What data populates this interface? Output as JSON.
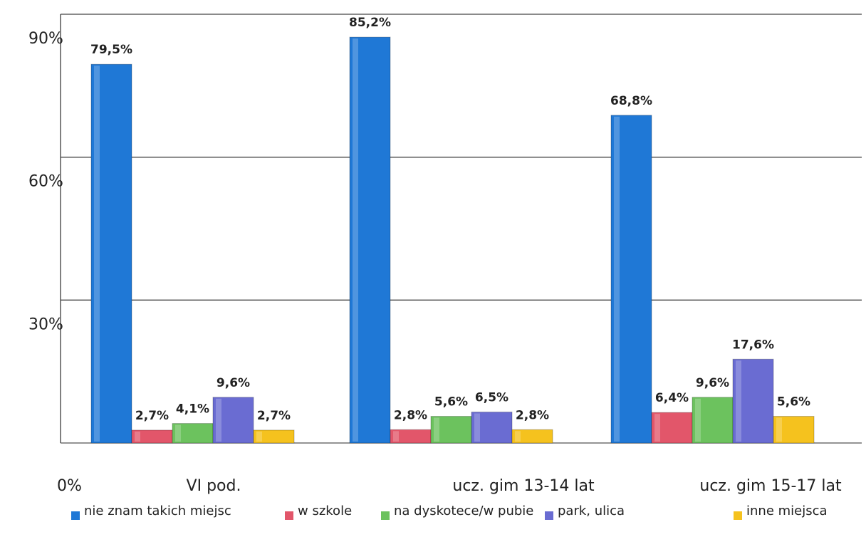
{
  "chart_data": {
    "type": "bar",
    "categories": [
      "VI pod.",
      "ucz. gim 13-14 lat",
      "ucz. gim 15-17 lat"
    ],
    "series": [
      {
        "name": "nie znam takich miejsc",
        "color": "#1f78d6",
        "values": [
          79.5,
          85.2,
          68.8
        ],
        "value_labels": [
          "79,5%",
          "85,2%",
          "68,8%"
        ]
      },
      {
        "name": "w szkole",
        "color": "#e2566a",
        "values": [
          2.7,
          2.8,
          6.4
        ],
        "value_labels": [
          "2,7%",
          "2,8%",
          "6,4%"
        ]
      },
      {
        "name": "na dyskotece/w pubie",
        "color": "#6cc25e",
        "values": [
          4.1,
          5.6,
          9.6
        ],
        "value_labels": [
          "4,1%",
          "5,6%",
          "9,6%"
        ]
      },
      {
        "name": "park, ulica",
        "color": "#6a6cd2",
        "values": [
          9.6,
          6.5,
          17.6
        ],
        "value_labels": [
          "9,6%",
          "6,5%",
          "17,6%"
        ]
      },
      {
        "name": "inne miejsca",
        "color": "#f5c21e",
        "values": [
          2.7,
          2.8,
          5.6
        ],
        "value_labels": [
          "2,7%",
          "2,8%",
          "5,6%"
        ]
      }
    ],
    "ylim": [
      0,
      90
    ],
    "yticks": [
      {
        "value": 0,
        "label": "0%"
      },
      {
        "value": 30,
        "label": "30%"
      },
      {
        "value": 60,
        "label": "60%"
      },
      {
        "value": 90,
        "label": "90%"
      }
    ],
    "grid": true,
    "legend": "bottom"
  }
}
